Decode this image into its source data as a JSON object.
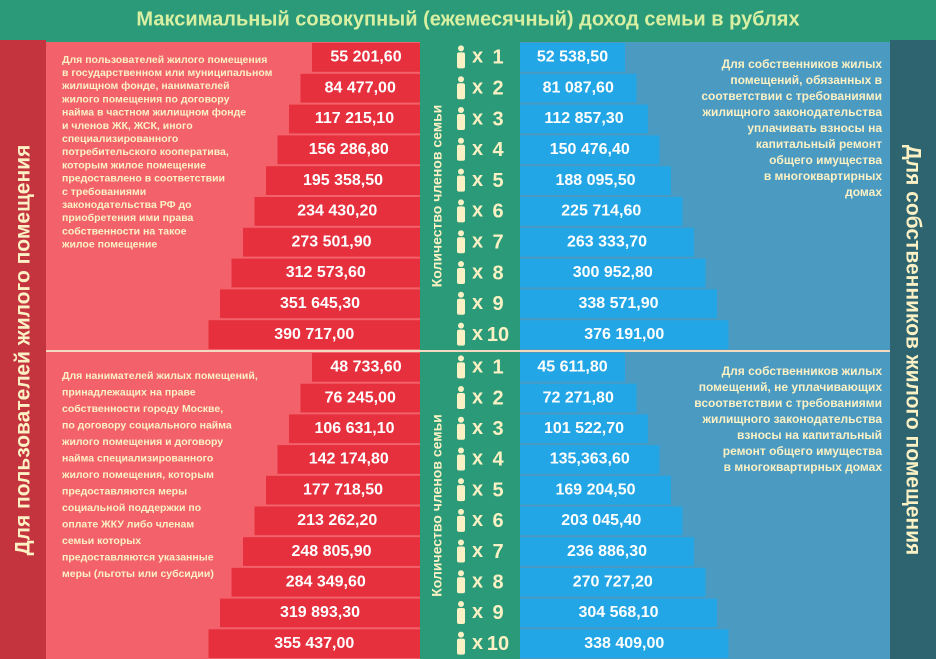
{
  "title": "Максимальный совокупный (ежемесячный) доход семьи в рублях",
  "left_label": "Для пользователей жилого помещения",
  "right_label": "Для собственников жилого помещения",
  "center_label": "Количество членов семьи",
  "times_sign": "x",
  "members": [
    1,
    2,
    3,
    4,
    5,
    6,
    7,
    8,
    9,
    10
  ],
  "sections": [
    {
      "left_text": [
        "Для пользователей жилого помещения",
        "в государственном или муниципальном",
        "жилищном фонде, нанимателей",
        "жилого помещения по договору",
        "найма в частном жилищном фонде",
        "и членов  ЖК, ЖСК, иного",
        "специализированного",
        "потребительского кооператива,",
        "которым жилое помещение",
        "предоставлено в соответствии",
        "с требованиями",
        "законодательства РФ до",
        "приобретения ими права",
        "собственности на такое",
        "жилое помещение"
      ],
      "right_text": [
        "Для собственников жилых",
        "помещений, обязанных в",
        "соответствии с требованиями",
        "жилищного законодательства",
        "уплачивать взносы на",
        "капитальный ремонт",
        "общего имущества",
        "в многоквартирных",
        "домах"
      ],
      "left_values": [
        "55 201,60",
        "84 477,00",
        "117 215,10",
        "156 286,80",
        "195 358,50",
        "234 430,20",
        "273 501,90",
        "312 573,60",
        "351 645,30",
        "390 717,00"
      ],
      "right_values": [
        "52 538,50",
        "81 087,60",
        "112 857,30",
        "150 476,40",
        "188 095,50",
        "225 714,60",
        "263 333,70",
        "300 952,80",
        "338 571,90",
        "376 191,00"
      ]
    },
    {
      "left_text": [
        "Для нанимателей жилых помещений,",
        "принадлежащих на праве",
        "собственности городу Москве,",
        "по договору социального найма",
        "жилого помещения и договору",
        "найма специализированного",
        "жилого помещения, которым",
        "предоставляются меры",
        "социальной поддержки по",
        "оплате ЖКУ либо членам",
        "семьи которых",
        "предоставляются указанные",
        "меры (льготы или субсидии)"
      ],
      "right_text": [
        "Для собственников жилых",
        "помещений, не уплачивающих",
        "всоответствии с требованиями",
        "жилищного законодательства",
        "взносы на капитальный",
        "ремонт общего имущества",
        "в многоквартирных домах"
      ],
      "left_values": [
        "48 733,60",
        "76 245,00",
        "106 631,10",
        "142 174,80",
        "177 718,50",
        "213 262,20",
        "248 805,90",
        "284 349,60",
        "319 893,30",
        "355 437,00"
      ],
      "right_values": [
        "45 611,80",
        "72 271,80",
        "101 522,70",
        "135,363,60",
        "169 204,50",
        "203 045,40",
        "236 886,30",
        "270 727,20",
        "304 568,10",
        "338 409,00"
      ]
    }
  ]
}
